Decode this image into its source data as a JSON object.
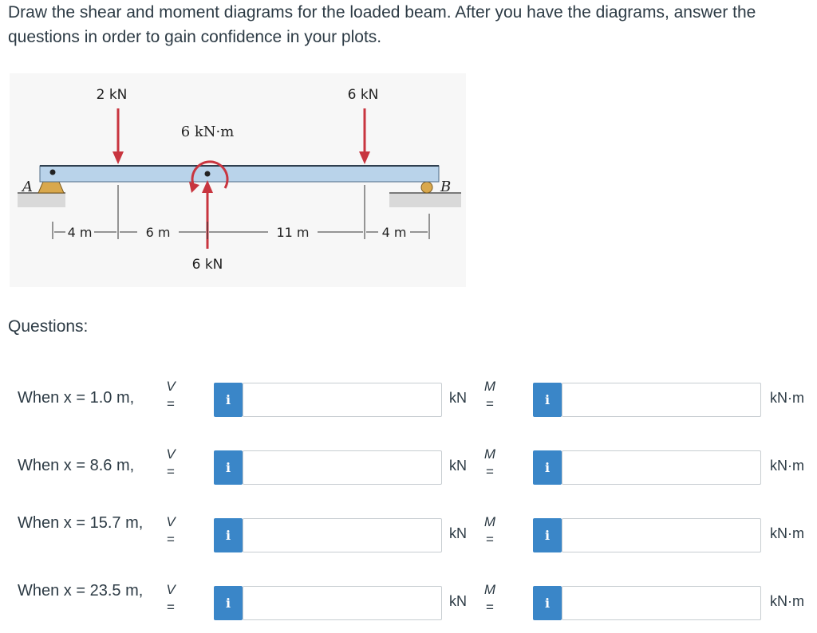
{
  "instructions": "Draw the shear and moment diagrams for the loaded beam. After you have the diagrams, answer the questions in order to gain confidence in your plots.",
  "figure": {
    "load_left": "2 kN",
    "load_right": "6 kN",
    "couple": "6 kN·m",
    "load_up": "6 kN",
    "support_a": "A",
    "support_b": "B",
    "dim_1": "4 m",
    "dim_2": "6 m",
    "dim_3": "11 m",
    "dim_4": "4 m"
  },
  "questions_heading": "Questions:",
  "symbols": {
    "shear": "V",
    "moment": "M",
    "equals": "="
  },
  "info_icon": "i",
  "units": {
    "shear": "kN",
    "moment": "kN·m"
  },
  "questions": [
    {
      "label": "When x = 1.0 m,",
      "shear_value": "",
      "moment_value": ""
    },
    {
      "label": "When x = 8.6 m,",
      "shear_value": "",
      "moment_value": ""
    },
    {
      "label": "When x = 15.7 m,",
      "shear_value": "",
      "moment_value": ""
    },
    {
      "label": "When x = 23.5 m,",
      "shear_value": "",
      "moment_value": ""
    }
  ],
  "colors": {
    "accent": "#3a86c8",
    "load_arrow": "#c8353f",
    "beam": "#b9d3ea"
  }
}
